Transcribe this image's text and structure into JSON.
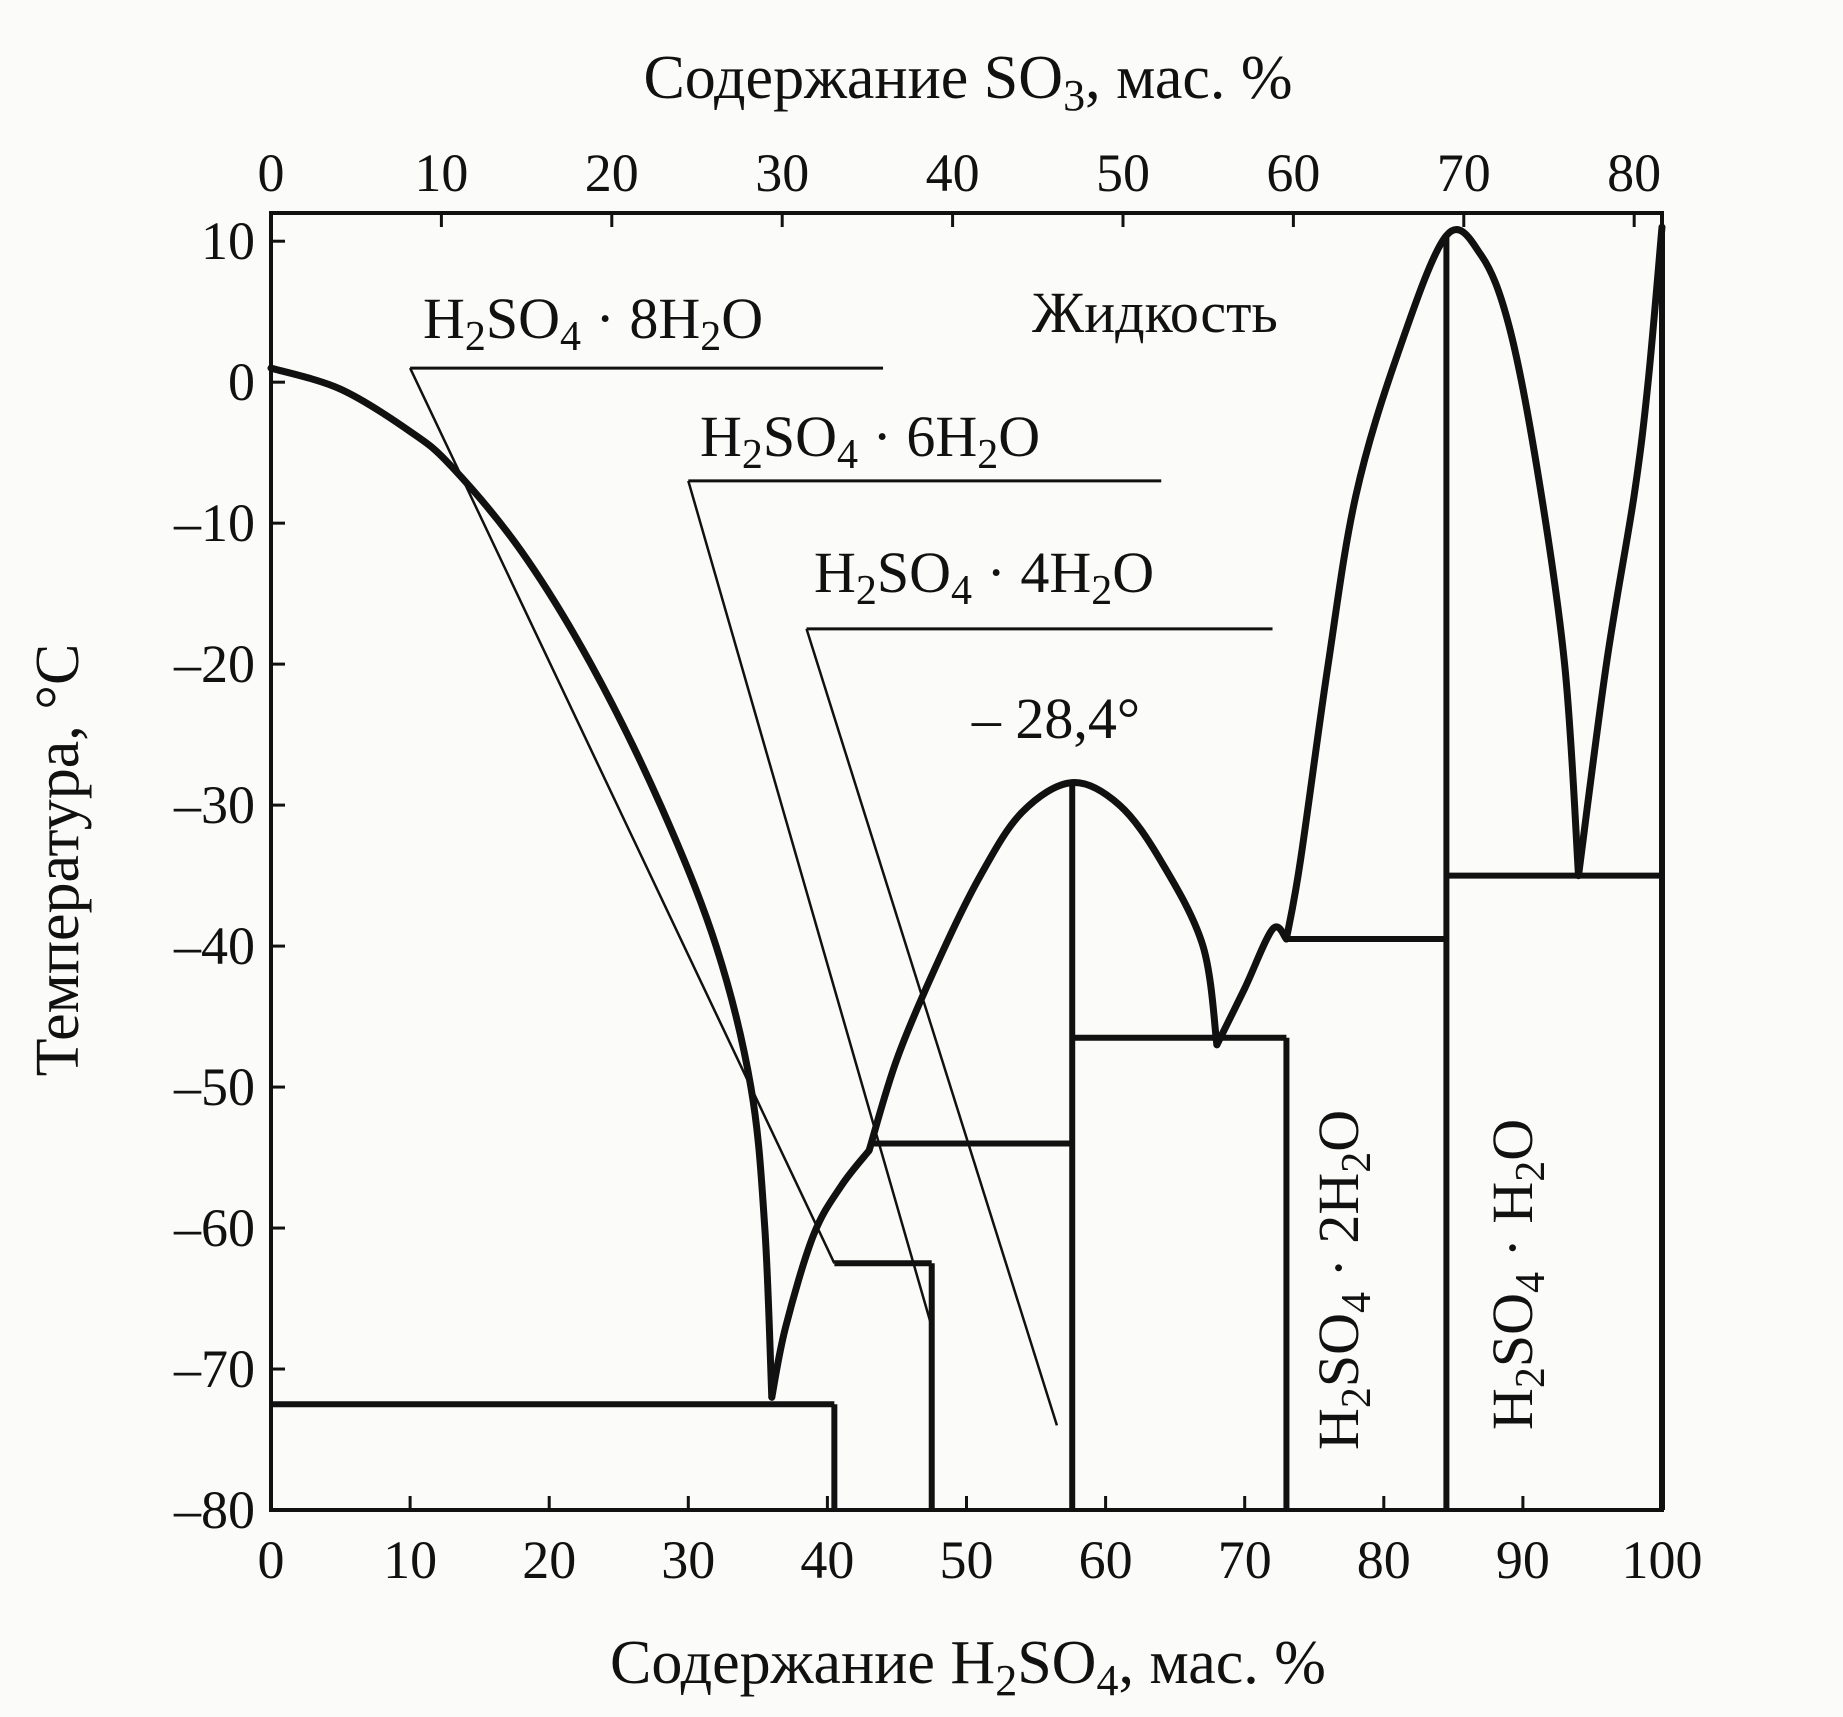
{
  "chart_data": {
    "type": "line",
    "title": "",
    "xlabel": {
      "prefix": "Содержание H",
      "sub1": "2",
      "mid": "SO",
      "sub2": "4",
      "suffix": ", мас. %"
    },
    "x2label": {
      "prefix": "Содержание SO",
      "sub1": "3",
      "suffix": ", мас. %"
    },
    "ylabel": "Температура, °C",
    "xlim": [
      0,
      100
    ],
    "ylim": [
      -80,
      12
    ],
    "x_ticks": [
      0,
      10,
      20,
      30,
      40,
      50,
      60,
      70,
      80,
      90,
      100
    ],
    "y_ticks": [
      10,
      0,
      -10,
      -20,
      -30,
      -40,
      -50,
      -60,
      -70,
      -80
    ],
    "y_tick_labels": [
      "10",
      "0",
      "–10",
      "–20",
      "–30",
      "–40",
      "–50",
      "–60",
      "–70",
      "–80"
    ],
    "x2_ticks": [
      0,
      10,
      20,
      30,
      40,
      50,
      60,
      70,
      80
    ],
    "grid": false,
    "series": [
      {
        "values": [
          [
            0,
            1
          ],
          [
            5,
            -0.5
          ],
          [
            10,
            -3.5
          ],
          [
            13,
            -6
          ],
          [
            18,
            -12
          ],
          [
            23,
            -20
          ],
          [
            28,
            -30
          ],
          [
            32,
            -40
          ],
          [
            34.5,
            -50
          ],
          [
            35.5,
            -60
          ],
          [
            36,
            -72
          ]
        ]
      },
      {
        "values": [
          [
            36,
            -72
          ],
          [
            37,
            -67
          ],
          [
            39,
            -60.5
          ],
          [
            41,
            -57
          ],
          [
            43,
            -54.5
          ]
        ]
      },
      {
        "values": [
          [
            43,
            -54.5
          ],
          [
            45,
            -48
          ],
          [
            48,
            -41
          ],
          [
            51,
            -35
          ],
          [
            54,
            -30.5
          ],
          [
            57.6,
            -28.4
          ],
          [
            61,
            -30
          ],
          [
            64,
            -34
          ],
          [
            67,
            -40
          ],
          [
            68,
            -47
          ]
        ]
      },
      {
        "values": [
          [
            68,
            -47
          ],
          [
            70,
            -43
          ],
          [
            72,
            -38.8
          ],
          [
            73,
            -39.5
          ]
        ]
      },
      {
        "values": [
          [
            73,
            -39.5
          ],
          [
            74,
            -34
          ],
          [
            76,
            -20
          ],
          [
            78,
            -8
          ],
          [
            81,
            2
          ],
          [
            84.5,
            10.4
          ],
          [
            87,
            9
          ],
          [
            89,
            4
          ],
          [
            91,
            -6
          ],
          [
            93,
            -20
          ],
          [
            94,
            -35
          ]
        ]
      },
      {
        "values": [
          [
            94,
            -35
          ],
          [
            96,
            -20
          ],
          [
            98,
            -8
          ],
          [
            99,
            0
          ],
          [
            100,
            11
          ]
        ]
      }
    ],
    "phase_boundaries": {
      "horizontal": [
        {
          "y": -72.5,
          "x": [
            0,
            40.5
          ]
        },
        {
          "y": -62.5,
          "x": [
            40.5,
            47.5
          ]
        },
        {
          "y": -54,
          "x": [
            43,
            57.6
          ]
        },
        {
          "y": -46.5,
          "x": [
            57.6,
            73
          ]
        },
        {
          "y": -39.5,
          "x": [
            73,
            84.5
          ]
        },
        {
          "y": -35,
          "x": [
            84.5,
            100
          ]
        }
      ],
      "vertical": [
        {
          "x": 40.5,
          "y": [
            -80,
            -72.5
          ]
        },
        {
          "x": 47.5,
          "y": [
            -80,
            -62.5
          ]
        },
        {
          "x": 57.6,
          "y": [
            -80,
            -28.4
          ]
        },
        {
          "x": 73,
          "y": [
            -80,
            -46.5
          ]
        },
        {
          "x": 84.5,
          "y": [
            -80,
            10.4
          ]
        },
        {
          "x": 100,
          "y": [
            -80,
            11
          ]
        }
      ]
    },
    "metastable_lines": [
      {
        "points": [
          [
            10,
            1
          ],
          [
            40.5,
            -62.5
          ]
        ]
      },
      {
        "points": [
          [
            30,
            -7
          ],
          [
            47.5,
            -67
          ]
        ]
      },
      {
        "points": [
          [
            38.5,
            -17.5
          ],
          [
            56.5,
            -74
          ]
        ]
      }
    ],
    "leader_lines": [
      {
        "points": [
          [
            10,
            1
          ],
          [
            44,
            1
          ]
        ]
      },
      {
        "points": [
          [
            30,
            -7
          ],
          [
            64,
            -7
          ]
        ]
      },
      {
        "points": [
          [
            38.5,
            -17.5
          ],
          [
            72,
            -17.5
          ]
        ]
      }
    ],
    "labels": {
      "liquid": "Жидкость",
      "max_temp": "– 28,4°",
      "h2so4_8h2o": {
        "p1": "H",
        "s1": "2",
        "p2": "SO",
        "s2": "4",
        "p3": " · 8H",
        "s3": "2",
        "p4": "O"
      },
      "h2so4_6h2o": {
        "p1": "H",
        "s1": "2",
        "p2": "SO",
        "s2": "4",
        "p3": " · 6H",
        "s3": "2",
        "p4": "O"
      },
      "h2so4_4h2o": {
        "p1": "H",
        "s1": "2",
        "p2": "SO",
        "s2": "4",
        "p3": " · 4H",
        "s3": "2",
        "p4": "O"
      },
      "h2so4_2h2o": {
        "p1": "H",
        "s1": "2",
        "p2": "SO",
        "s2": "4",
        "p3": " · 2H",
        "s3": "2",
        "p4": "O"
      },
      "h2so4_h2o": {
        "p1": "H",
        "s1": "2",
        "p2": "SO",
        "s2": "4",
        "p3": " · H",
        "s3": "2",
        "p4": "O"
      }
    }
  }
}
